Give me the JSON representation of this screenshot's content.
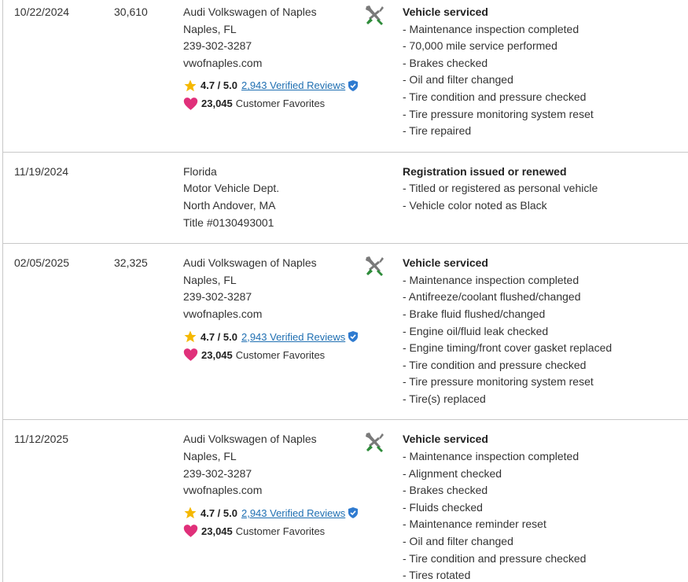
{
  "rows": [
    {
      "date": "10/22/2024",
      "mileage": "30,610",
      "source": [
        "Audi Volkswagen of Naples",
        "Naples, FL",
        "239-302-3287",
        "vwofnaples.com"
      ],
      "rating": {
        "score": "4.7 / 5.0",
        "reviews": "2,943 Verified Reviews"
      },
      "favorites": {
        "count": "23,045",
        "label": "Customer Favorites"
      },
      "comments": {
        "title": "Vehicle serviced",
        "items": [
          "- Maintenance inspection completed",
          "- 70,000 mile service performed",
          "- Brakes checked",
          "- Oil and filter changed",
          "- Tire condition and pressure checked",
          "- Tire pressure monitoring system reset",
          "- Tire repaired"
        ]
      }
    },
    {
      "date": "11/19/2024",
      "source": [
        "Florida",
        "Motor Vehicle Dept.",
        "North Andover, MA",
        "Title #0130493001"
      ],
      "comments": {
        "title": "Registration issued or renewed",
        "items": [
          "- Titled or registered as personal vehicle",
          "- Vehicle color noted as Black"
        ]
      }
    },
    {
      "date": "02/05/2025",
      "mileage": "32,325",
      "source": [
        "Audi Volkswagen of Naples",
        "Naples, FL",
        "239-302-3287",
        "vwofnaples.com"
      ],
      "rating": {
        "score": "4.7 / 5.0",
        "reviews": "2,943 Verified Reviews"
      },
      "favorites": {
        "count": "23,045",
        "label": "Customer Favorites"
      },
      "comments": {
        "title": "Vehicle serviced",
        "items": [
          "- Maintenance inspection completed",
          "- Antifreeze/coolant flushed/changed",
          "- Brake fluid flushed/changed",
          "- Engine oil/fluid leak checked",
          "- Engine timing/front cover gasket replaced",
          "- Tire condition and pressure checked",
          "- Tire pressure monitoring system reset",
          "- Tire(s) replaced"
        ]
      }
    },
    {
      "date": "11/12/2025",
      "source": [
        "Audi Volkswagen of Naples",
        "Naples, FL",
        "239-302-3287",
        "vwofnaples.com"
      ],
      "rating": {
        "score": "4.7 / 5.0",
        "reviews": "2,943 Verified Reviews"
      },
      "favorites": {
        "count": "23,045",
        "label": "Customer Favorites"
      },
      "comments": {
        "title": "Vehicle serviced",
        "items": [
          "- Maintenance inspection completed",
          "- Alignment checked",
          "- Brakes checked",
          "- Fluids checked",
          "- Maintenance reminder reset",
          "- Oil and filter changed",
          "- Tire condition and pressure checked",
          "- Tires rotated"
        ]
      }
    }
  ]
}
